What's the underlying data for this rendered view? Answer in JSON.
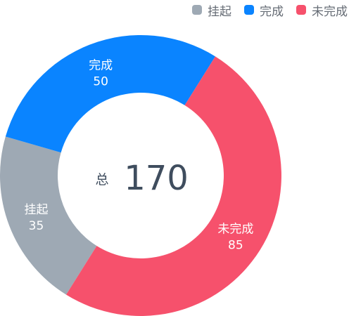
{
  "chart_data": {
    "type": "pie",
    "variant": "donut",
    "categories": [
      "挂起",
      "完成",
      "未完成"
    ],
    "values": [
      35,
      50,
      85
    ],
    "colors": [
      "#9ea9b4",
      "#0a84ff",
      "#f6516c"
    ],
    "legend": {
      "position": "top-right",
      "items": [
        {
          "label": "挂起",
          "color": "#9ea9b4"
        },
        {
          "label": "完成",
          "color": "#0a84ff"
        },
        {
          "label": "未完成",
          "color": "#f6516c"
        }
      ]
    },
    "center": {
      "prefix": "总",
      "value": "170"
    }
  }
}
